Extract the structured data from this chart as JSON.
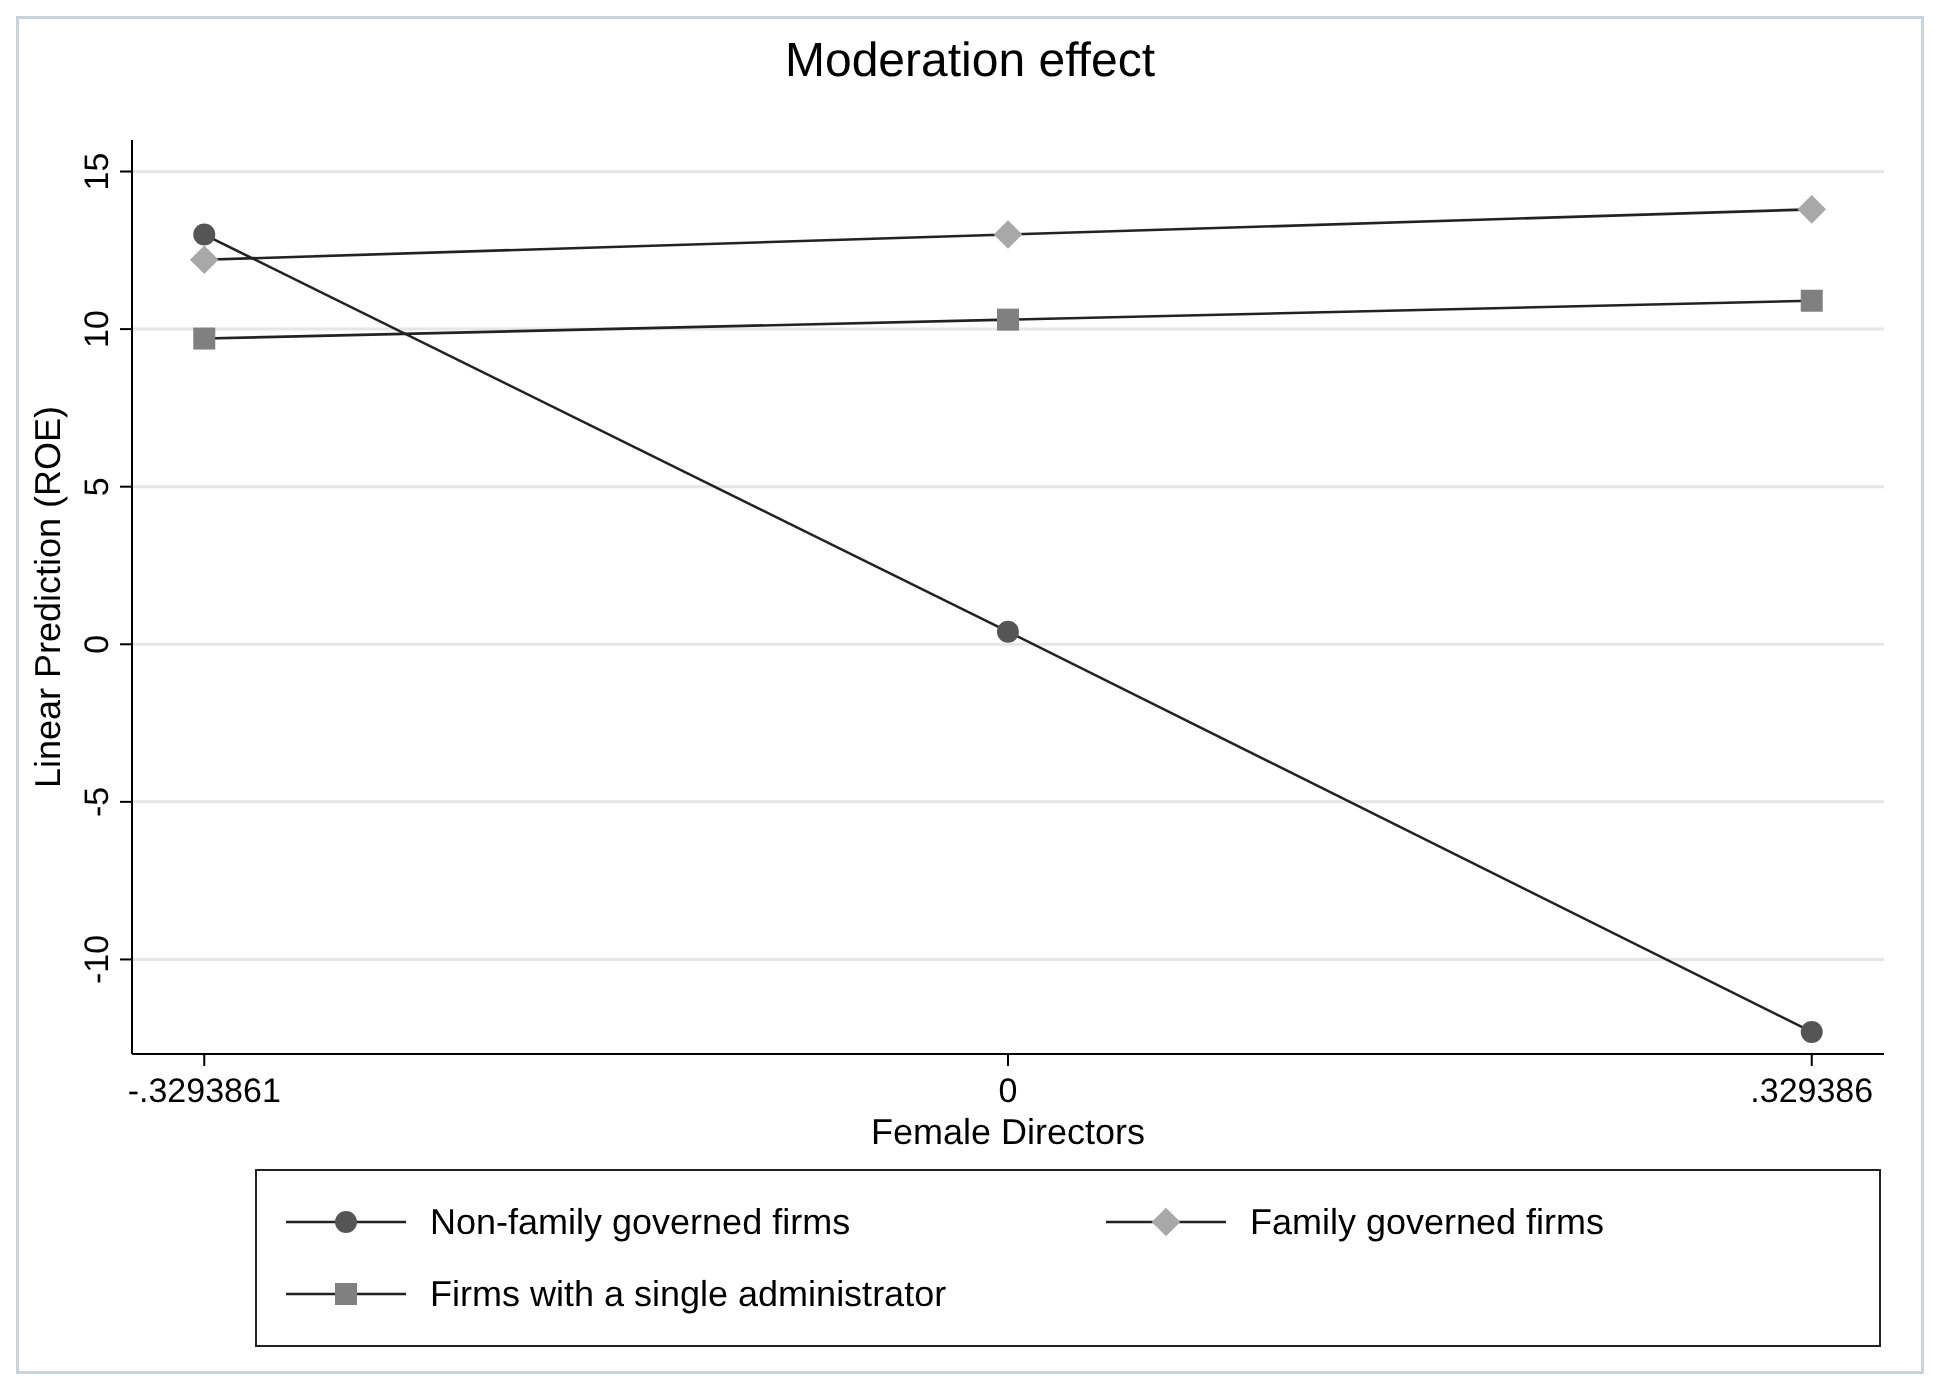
{
  "chart_data": {
    "type": "line",
    "title": "Moderation effect",
    "xlabel": "Female Directors",
    "ylabel": "Linear Prediction (ROE)",
    "x": [
      -0.3293861,
      0,
      0.329386
    ],
    "xlim": [
      -0.359,
      0.359
    ],
    "xticks": [
      {
        "value": -0.3293861,
        "label": "-.3293861"
      },
      0,
      {
        "value": 0.329386,
        "label": ".329386"
      }
    ],
    "ylim": [
      -13,
      16
    ],
    "yticks": [
      -10,
      -5,
      0,
      5,
      10,
      15
    ],
    "grid": "y",
    "legend": "bottom",
    "series": [
      {
        "name": "Non-family governed firms",
        "color": "#555555",
        "marker": "circle",
        "values": [
          13,
          0.4,
          -12.3
        ]
      },
      {
        "name": "Family governed firms",
        "color": "#a8a8a8",
        "marker": "diamond",
        "values": [
          12.2,
          13,
          13.8
        ]
      },
      {
        "name": "Firms with a single administrator",
        "color": "#808080",
        "marker": "square",
        "values": [
          9.7,
          10.3,
          10.9
        ]
      }
    ]
  }
}
